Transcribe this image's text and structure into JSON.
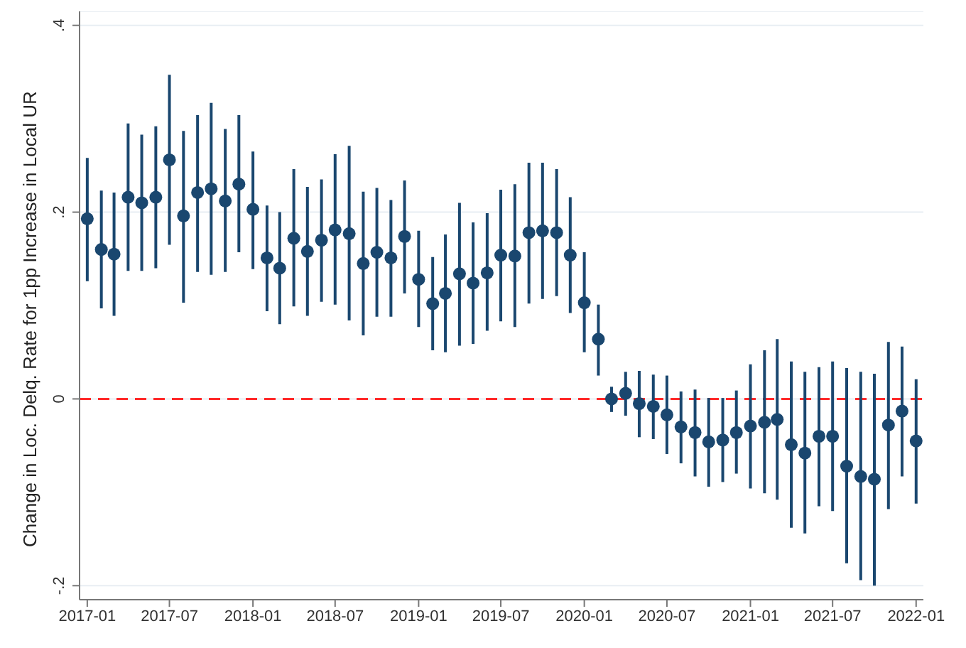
{
  "chart_data": {
    "type": "scatter",
    "ylabel": "Change in Loc. Delq. Rate for 1pp Increase in Local UR",
    "x": [
      "2017-01",
      "2017-02",
      "2017-03",
      "2017-04",
      "2017-05",
      "2017-06",
      "2017-07",
      "2017-08",
      "2017-09",
      "2017-10",
      "2017-11",
      "2017-12",
      "2018-01",
      "2018-02",
      "2018-03",
      "2018-04",
      "2018-05",
      "2018-06",
      "2018-07",
      "2018-08",
      "2018-09",
      "2018-10",
      "2018-11",
      "2018-12",
      "2019-01",
      "2019-02",
      "2019-03",
      "2019-04",
      "2019-05",
      "2019-06",
      "2019-07",
      "2019-08",
      "2019-09",
      "2019-10",
      "2019-11",
      "2019-12",
      "2020-01",
      "2020-02",
      "2020-03",
      "2020-04",
      "2020-05",
      "2020-06",
      "2020-07",
      "2020-08",
      "2020-09",
      "2020-10",
      "2020-11",
      "2020-12",
      "2021-01",
      "2021-02",
      "2021-03",
      "2021-04",
      "2021-05",
      "2021-06",
      "2021-07",
      "2021-08",
      "2021-09",
      "2021-10",
      "2021-11",
      "2021-12",
      "2022-01"
    ],
    "series": [
      {
        "color": "#1a476f",
        "values": [
          0.193,
          0.16,
          0.155,
          0.216,
          0.21,
          0.216,
          0.256,
          0.196,
          0.221,
          0.225,
          0.212,
          0.23,
          0.203,
          0.151,
          0.14,
          0.172,
          0.158,
          0.17,
          0.181,
          0.177,
          0.145,
          0.157,
          0.151,
          0.174,
          0.128,
          0.102,
          0.113,
          0.134,
          0.124,
          0.135,
          0.154,
          0.153,
          0.178,
          0.18,
          0.178,
          0.154,
          0.103,
          0.064,
          0.0,
          0.006,
          -0.005,
          -0.008,
          -0.017,
          -0.03,
          -0.036,
          -0.046,
          -0.044,
          -0.036,
          -0.029,
          -0.025,
          -0.022,
          -0.049,
          -0.058,
          -0.04,
          -0.04,
          -0.072,
          -0.083,
          -0.086,
          -0.028,
          -0.013,
          -0.045
        ],
        "errors": [
          [
            0.126,
            0.258
          ],
          [
            0.097,
            0.223
          ],
          [
            0.089,
            0.221
          ],
          [
            0.137,
            0.295
          ],
          [
            0.137,
            0.283
          ],
          [
            0.14,
            0.292
          ],
          [
            0.165,
            0.347
          ],
          [
            0.103,
            0.287
          ],
          [
            0.136,
            0.304
          ],
          [
            0.133,
            0.317
          ],
          [
            0.136,
            0.289
          ],
          [
            0.157,
            0.304
          ],
          [
            0.139,
            0.265
          ],
          [
            0.094,
            0.207
          ],
          [
            0.08,
            0.2
          ],
          [
            0.099,
            0.246
          ],
          [
            0.089,
            0.227
          ],
          [
            0.104,
            0.235
          ],
          [
            0.101,
            0.262
          ],
          [
            0.084,
            0.271
          ],
          [
            0.068,
            0.222
          ],
          [
            0.088,
            0.226
          ],
          [
            0.088,
            0.213
          ],
          [
            0.113,
            0.234
          ],
          [
            0.077,
            0.18
          ],
          [
            0.052,
            0.152
          ],
          [
            0.05,
            0.176
          ],
          [
            0.057,
            0.21
          ],
          [
            0.059,
            0.189
          ],
          [
            0.073,
            0.199
          ],
          [
            0.083,
            0.224
          ],
          [
            0.077,
            0.23
          ],
          [
            0.102,
            0.253
          ],
          [
            0.107,
            0.253
          ],
          [
            0.11,
            0.246
          ],
          [
            0.092,
            0.216
          ],
          [
            0.05,
            0.157
          ],
          [
            0.025,
            0.101
          ],
          [
            -0.014,
            0.013
          ],
          [
            -0.018,
            0.029
          ],
          [
            -0.041,
            0.03
          ],
          [
            -0.043,
            0.026
          ],
          [
            -0.059,
            0.025
          ],
          [
            -0.069,
            0.008
          ],
          [
            -0.083,
            0.01
          ],
          [
            -0.094,
            0.001
          ],
          [
            -0.089,
            0.001
          ],
          [
            -0.08,
            0.009
          ],
          [
            -0.096,
            0.037
          ],
          [
            -0.101,
            0.052
          ],
          [
            -0.108,
            0.064
          ],
          [
            -0.138,
            0.04
          ],
          [
            -0.144,
            0.029
          ],
          [
            -0.115,
            0.034
          ],
          [
            -0.12,
            0.04
          ],
          [
            -0.176,
            0.033
          ],
          [
            -0.194,
            0.029
          ],
          [
            -0.2,
            0.027
          ],
          [
            -0.118,
            0.061
          ],
          [
            -0.083,
            0.056
          ],
          [
            -0.112,
            0.021
          ]
        ]
      }
    ],
    "xlim": [
      "2016-12-15",
      "2022-01-17"
    ],
    "xticks": [
      "2017-01",
      "2017-07",
      "2018-01",
      "2018-07",
      "2019-01",
      "2019-07",
      "2020-01",
      "2020-07",
      "2021-01",
      "2021-07",
      "2022-01"
    ],
    "ylim": [
      -0.215,
      0.415
    ],
    "yticks": [
      {
        "value": -0.2,
        "label": "-.2"
      },
      {
        "value": 0,
        "label": "0"
      },
      {
        "value": 0.2,
        "label": ".2"
      },
      {
        "value": 0.4,
        "label": ".4"
      }
    ],
    "grid": "y",
    "marker": "circle",
    "ref_lines": [
      {
        "axis": "y",
        "value": 0,
        "color": "#ff2a2a",
        "line_style": "dashed"
      }
    ]
  }
}
